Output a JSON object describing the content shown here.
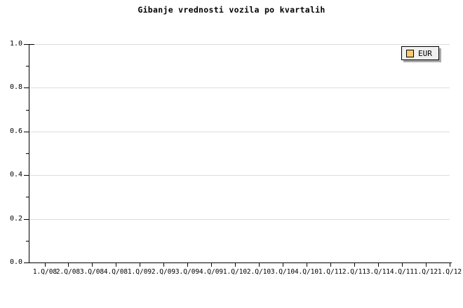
{
  "chart_data": {
    "type": "line",
    "title": "Gibanje vrednosti vozila po kvartalih",
    "xlabel": "",
    "ylabel": "",
    "categories": [
      "1.Q/08",
      "2.Q/08",
      "3.Q/08",
      "4.Q/08",
      "1.Q/09",
      "2.Q/09",
      "3.Q/09",
      "4.Q/09",
      "1.Q/10",
      "2.Q/10",
      "3.Q/10",
      "4.Q/10",
      "1.Q/11",
      "2.Q/11",
      "3.Q/11",
      "4.Q/11",
      "1.Q/12",
      "1.Q/12"
    ],
    "series": [
      {
        "name": "EUR",
        "color": "#facb6e",
        "values": []
      }
    ],
    "ylim": [
      0.0,
      1.0
    ],
    "y_ticks": [
      {
        "value": 0.0,
        "label": "0.0"
      },
      {
        "value": 0.2,
        "label": "0.2"
      },
      {
        "value": 0.4,
        "label": "0.4"
      },
      {
        "value": 0.6,
        "label": "0.6"
      },
      {
        "value": 0.8,
        "label": "0.8"
      },
      {
        "value": 1.0,
        "label": "1.0"
      }
    ],
    "y_minor_ticks": [
      0.1,
      0.3,
      0.5,
      0.7,
      0.9
    ],
    "grid": "horizontal-major-only",
    "legend": {
      "position": "top-right",
      "items": [
        {
          "label": "EUR",
          "color": "#facb6e"
        }
      ]
    },
    "colors": {
      "gridline": "#dddddd",
      "axis": "#000000",
      "legend_background": "#f0f0f0",
      "legend_shadow": "#a9a9a9",
      "series_swatch": "#facb6e"
    },
    "notes": "plot area is empty - no data points drawn"
  }
}
